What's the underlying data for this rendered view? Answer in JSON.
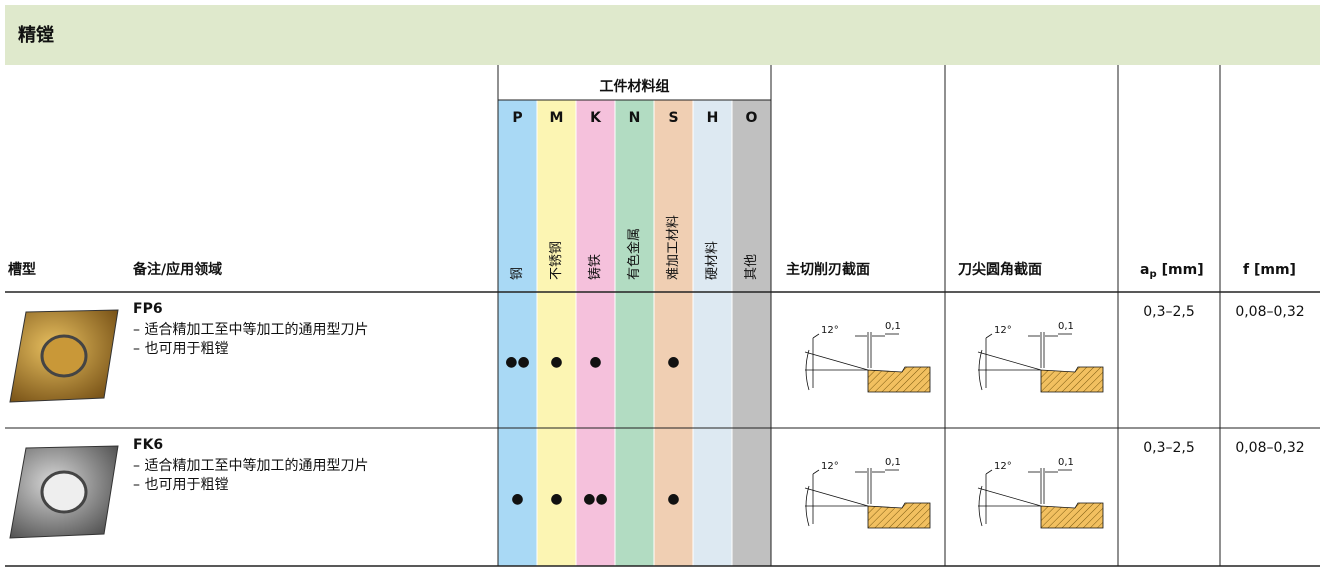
{
  "title": "精镗",
  "header": {
    "groove": "槽型",
    "notes": "备注/应用领域",
    "material_group": "工件材料组",
    "materials": [
      {
        "code": "P",
        "name": "钢"
      },
      {
        "code": "M",
        "name": "不锈钢"
      },
      {
        "code": "K",
        "name": "铸铁"
      },
      {
        "code": "N",
        "name": "有色金属"
      },
      {
        "code": "S",
        "name": "难加工材料"
      },
      {
        "code": "H",
        "name": "硬材料"
      },
      {
        "code": "O",
        "name": "其他"
      }
    ],
    "main_edge": "主切削刃截面",
    "corner": "刀尖圆角截面",
    "ap": {
      "main": "a",
      "sub": "p",
      "unit": "[mm]"
    },
    "f": "f [mm]"
  },
  "rows": [
    {
      "name": "FP6",
      "notes": [
        "– 适合精加工至中等加工的通用型刀片",
        "– 也可用于粗镗"
      ],
      "materials": {
        "P": "●●",
        "M": "●",
        "K": "●",
        "S": "●"
      },
      "main_edge": {
        "angle": "12°",
        "land": "0,1"
      },
      "corner": {
        "angle": "12°",
        "land": "0,1"
      },
      "ap": "0,3–2,5",
      "f": "0,08–0,32"
    },
    {
      "name": "FK6",
      "notes": [
        "– 适合精加工至中等加工的通用型刀片",
        "– 也可用于粗镗"
      ],
      "materials": {
        "P": "●",
        "M": "●",
        "K": "●●",
        "S": "●"
      },
      "main_edge": {
        "angle": "12°",
        "land": "0,1"
      },
      "corner": {
        "angle": "12°",
        "land": "0,1"
      },
      "ap": "0,3–2,5",
      "f": "0,08–0,32"
    }
  ]
}
